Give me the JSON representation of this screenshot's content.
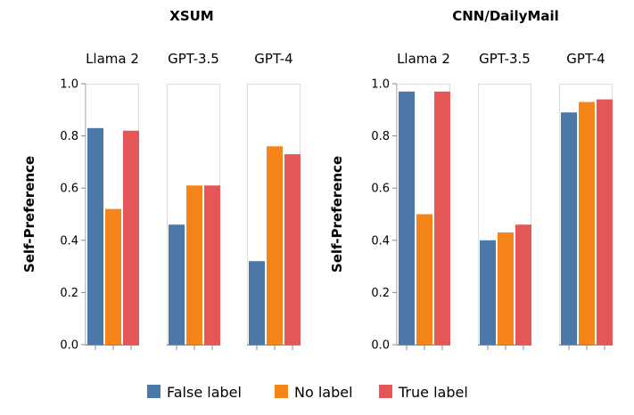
{
  "chart_data": [
    {
      "type": "bar",
      "title": "XSUM",
      "ylabel": "Self-Preference",
      "ylim": [
        0,
        1
      ],
      "yticks": [
        "0.0",
        "0.2",
        "0.4",
        "0.6",
        "0.8",
        "1.0"
      ],
      "panels": [
        {
          "name": "Llama 2",
          "values": [
            0.83,
            0.52,
            0.82
          ]
        },
        {
          "name": "GPT-3.5",
          "values": [
            0.46,
            0.61,
            0.61
          ]
        },
        {
          "name": "GPT-4",
          "values": [
            0.32,
            0.76,
            0.73
          ]
        }
      ]
    },
    {
      "type": "bar",
      "title": "CNN/DailyMail",
      "ylabel": "Self-Preference",
      "ylim": [
        0,
        1
      ],
      "yticks": [
        "0.0",
        "0.2",
        "0.4",
        "0.6",
        "0.8",
        "1.0"
      ],
      "panels": [
        {
          "name": "Llama 2",
          "values": [
            0.97,
            0.5,
            0.97
          ]
        },
        {
          "name": "GPT-3.5",
          "values": [
            0.4,
            0.43,
            0.46
          ]
        },
        {
          "name": "GPT-4",
          "values": [
            0.89,
            0.93,
            0.94
          ]
        }
      ]
    }
  ],
  "legend": [
    {
      "label": "False label",
      "color": "#4c78a8"
    },
    {
      "label": "No label",
      "color": "#f58518"
    },
    {
      "label": "True label",
      "color": "#e45756"
    }
  ]
}
